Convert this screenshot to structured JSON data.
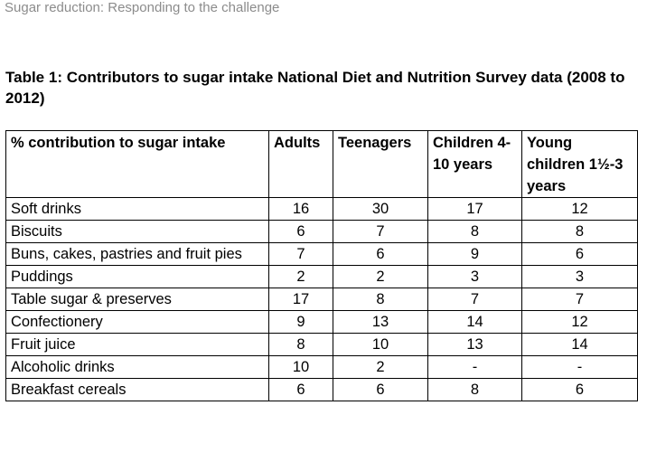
{
  "running_header": "Sugar reduction: Responding to the challenge",
  "table_caption": "Table 1: Contributors to sugar intake National Diet and Nutrition Survey data (2008 to 2012)",
  "table": {
    "headers": [
      "% contribution to sugar intake",
      "Adults",
      "Teenagers",
      "Children 4-10 years",
      "Young children 1½-3 years"
    ],
    "rows": [
      {
        "label": "Soft drinks",
        "adults": "16",
        "teenagers": "30",
        "children": "17",
        "young_children": "12"
      },
      {
        "label": "Biscuits",
        "adults": "6",
        "teenagers": "7",
        "children": "8",
        "young_children": "8"
      },
      {
        "label": "Buns, cakes, pastries and fruit pies",
        "adults": "7",
        "teenagers": "6",
        "children": "9",
        "young_children": "6"
      },
      {
        "label": "Puddings",
        "adults": "2",
        "teenagers": "2",
        "children": "3",
        "young_children": "3"
      },
      {
        "label": "Table sugar & preserves",
        "adults": "17",
        "teenagers": "8",
        "children": "7",
        "young_children": "7"
      },
      {
        "label": "Confectionery",
        "adults": "9",
        "teenagers": "13",
        "children": "14",
        "young_children": "12"
      },
      {
        "label": "Fruit juice",
        "adults": "8",
        "teenagers": "10",
        "children": "13",
        "young_children": "14"
      },
      {
        "label": "Alcoholic drinks",
        "adults": "10",
        "teenagers": "2",
        "children": "-",
        "young_children": "-"
      },
      {
        "label": "Breakfast cereals",
        "adults": "6",
        "teenagers": "6",
        "children": "8",
        "young_children": "6"
      }
    ]
  }
}
